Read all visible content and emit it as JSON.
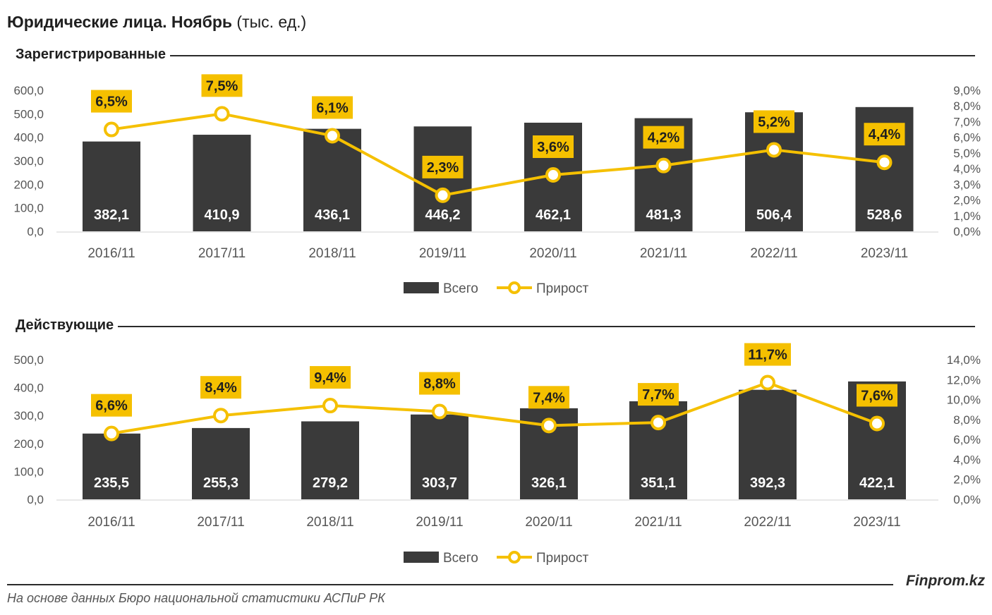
{
  "title": {
    "main": "Юридические лица. Ноябрь",
    "unit": "(тыс. ед.)"
  },
  "chart_data": [
    {
      "type": "bar",
      "title": "Зарегистрированные",
      "categories": [
        "2016/11",
        "2017/11",
        "2018/11",
        "2019/11",
        "2020/11",
        "2021/11",
        "2022/11",
        "2023/11"
      ],
      "series": [
        {
          "name": "Всего",
          "type": "bar",
          "axis": "left",
          "values": [
            382.1,
            410.9,
            436.1,
            446.2,
            462.1,
            481.3,
            506.4,
            528.6
          ],
          "labels": [
            "382,1",
            "410,9",
            "436,1",
            "446,2",
            "462,1",
            "481,3",
            "506,4",
            "528,6"
          ]
        },
        {
          "name": "Прирост",
          "type": "line",
          "axis": "right",
          "values": [
            6.5,
            7.5,
            6.1,
            2.3,
            3.6,
            4.2,
            5.2,
            4.4
          ],
          "labels": [
            "6,5%",
            "7,5%",
            "6,1%",
            "2,3%",
            "3,6%",
            "4,2%",
            "5,2%",
            "4,4%"
          ]
        }
      ],
      "ylim": [
        0,
        600
      ],
      "y2lim": [
        0,
        9
      ],
      "yticks": [
        "0,0",
        "100,0",
        "200,0",
        "300,0",
        "400,0",
        "500,0",
        "600,0"
      ],
      "y2ticks": [
        "0,0%",
        "1,0%",
        "2,0%",
        "3,0%",
        "4,0%",
        "5,0%",
        "6,0%",
        "7,0%",
        "8,0%",
        "9,0%"
      ],
      "legend": [
        "Всего",
        "Прирост"
      ],
      "legend_position": "bottom"
    },
    {
      "type": "bar",
      "title": "Действующие",
      "categories": [
        "2016/11",
        "2017/11",
        "2018/11",
        "2019/11",
        "2020/11",
        "2021/11",
        "2022/11",
        "2023/11"
      ],
      "series": [
        {
          "name": "Всего",
          "type": "bar",
          "axis": "left",
          "values": [
            235.5,
            255.3,
            279.2,
            303.7,
            326.1,
            351.1,
            392.3,
            422.1
          ],
          "labels": [
            "235,5",
            "255,3",
            "279,2",
            "303,7",
            "326,1",
            "351,1",
            "392,3",
            "422,1"
          ]
        },
        {
          "name": "Прирост",
          "type": "line",
          "axis": "right",
          "values": [
            6.6,
            8.4,
            9.4,
            8.8,
            7.4,
            7.7,
            11.7,
            7.6
          ],
          "labels": [
            "6,6%",
            "8,4%",
            "9,4%",
            "8,8%",
            "7,4%",
            "7,7%",
            "11,7%",
            "7,6%"
          ]
        }
      ],
      "ylim": [
        0,
        500
      ],
      "y2lim": [
        0,
        14
      ],
      "yticks": [
        "0,0",
        "100,0",
        "200,0",
        "300,0",
        "400,0",
        "500,0"
      ],
      "y2ticks": [
        "0,0%",
        "2,0%",
        "4,0%",
        "6,0%",
        "8,0%",
        "10,0%",
        "12,0%",
        "14,0%"
      ],
      "legend": [
        "Всего",
        "Прирост"
      ],
      "legend_position": "bottom"
    }
  ],
  "colors": {
    "bar": "#3a3a3a",
    "line": "#f5c000",
    "label_bg": "#f5c000",
    "text": "#555555"
  },
  "footer": {
    "brand": "Finprom.kz",
    "source": "На основе данных Бюро национальной статистики АСПиР РК"
  }
}
